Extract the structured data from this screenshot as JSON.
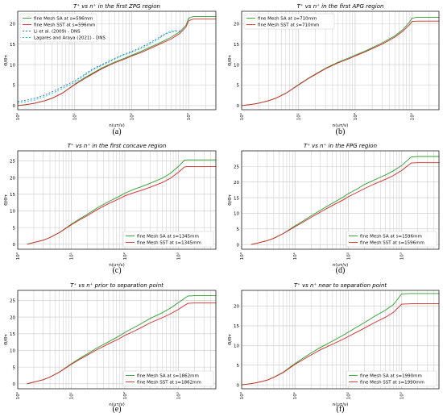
{
  "colors": {
    "sa": "#2ca02c",
    "sst": "#d62728",
    "li": "#1f77b4",
    "lagares": "#17becf",
    "grid": "#c8c8c8",
    "axis": "#000000"
  },
  "chart_data": [
    {
      "id": "a",
      "type": "line",
      "caption": "(a)",
      "title": "T⁺ vs n⁺ in the first ZPG region",
      "xlabel": "n(uτ/ν)",
      "ylabel": "Θ/Θτ",
      "xscale": "log",
      "xlim": [
        1,
        3000
      ],
      "ylim": [
        -1,
        23
      ],
      "xticks": [
        {
          "v": 1,
          "label": "10⁰"
        },
        {
          "v": 10,
          "label": "10¹"
        },
        {
          "v": 100,
          "label": "10²"
        },
        {
          "v": 1000,
          "label": "10³"
        }
      ],
      "yticks": [
        0,
        5,
        10,
        15,
        20
      ],
      "legend_position": "top-left",
      "series": [
        {
          "name": "fine Mesh SA at s=596mm",
          "color": "#2ca02c",
          "dash": "",
          "x": [
            1,
            1.5,
            2,
            3,
            4,
            6,
            10,
            15,
            20,
            30,
            50,
            80,
            100,
            150,
            200,
            300,
            500,
            700,
            900,
            1000,
            1200,
            1500,
            2000,
            3000
          ],
          "y": [
            0,
            0.3,
            0.6,
            1.2,
            1.8,
            3,
            5.2,
            6.8,
            7.8,
            9.2,
            10.6,
            11.7,
            12.3,
            13.3,
            14.1,
            15.2,
            16.7,
            18.0,
            19.6,
            21.3,
            21.7,
            21.7,
            21.7,
            21.7
          ]
        },
        {
          "name": "fine Mesh SST at s=596mm",
          "color": "#d62728",
          "dash": "",
          "x": [
            1,
            1.5,
            2,
            3,
            4,
            6,
            10,
            15,
            20,
            30,
            50,
            80,
            100,
            150,
            200,
            300,
            500,
            700,
            900,
            1000,
            1200,
            1500,
            2000,
            3000
          ],
          "y": [
            0,
            0.3,
            0.6,
            1.2,
            1.8,
            3,
            5.1,
            6.6,
            7.6,
            9.0,
            10.4,
            11.5,
            12.1,
            13.0,
            13.8,
            14.9,
            16.3,
            17.6,
            19.2,
            20.7,
            21.1,
            21.1,
            21.1,
            21.1
          ]
        },
        {
          "name": "Li et al. (2009) - DNS",
          "color": "#1f77b4",
          "dash": "2,2",
          "x": [
            1,
            1.5,
            2,
            3,
            5,
            7,
            10,
            20,
            30,
            50,
            70,
            100,
            150,
            200,
            300,
            400,
            600,
            800
          ],
          "y": [
            1,
            1.4,
            1.8,
            2.6,
            4,
            5,
            6,
            8.8,
            10,
            11.5,
            12.4,
            13.2,
            14.3,
            15.2,
            16.6,
            17.6,
            18.2,
            18.2
          ]
        },
        {
          "name": "Lagares and Araya (2021) - DNS",
          "color": "#17becf",
          "dash": "2,2",
          "x": [
            1,
            1.5,
            2,
            3,
            5,
            7,
            10,
            20,
            30,
            50,
            70,
            100,
            150,
            200,
            300,
            400,
            500,
            600
          ],
          "y": [
            0.6,
            1.0,
            1.4,
            2.2,
            3.6,
            4.6,
            5.6,
            8.6,
            9.8,
            11.3,
            12.3,
            13.0,
            14.0,
            14.9,
            16.3,
            17.6,
            18.2,
            18.3
          ]
        }
      ]
    },
    {
      "id": "b",
      "type": "line",
      "caption": "(b)",
      "title": "T⁺ vs n⁺ in the first APG region",
      "xlabel": "n(uτ/ν)",
      "ylabel": "Θ/Θτ",
      "xscale": "log",
      "xlim": [
        1,
        3000
      ],
      "ylim": [
        -1,
        23
      ],
      "xticks": [
        {
          "v": 1,
          "label": "10⁰"
        },
        {
          "v": 10,
          "label": "10¹"
        },
        {
          "v": 100,
          "label": "10²"
        },
        {
          "v": 1000,
          "label": "10³"
        }
      ],
      "yticks": [
        0,
        5,
        10,
        15,
        20
      ],
      "legend_position": "top-left",
      "series": [
        {
          "name": "fine Mesh SA at s=710mm",
          "color": "#2ca02c",
          "dash": "",
          "x": [
            1,
            1.5,
            2,
            3,
            4,
            6,
            10,
            15,
            20,
            30,
            50,
            80,
            100,
            150,
            200,
            300,
            500,
            700,
            900,
            1000,
            1200,
            1500,
            2000,
            3000
          ],
          "y": [
            0,
            0.3,
            0.6,
            1.2,
            1.8,
            3,
            5.1,
            6.7,
            7.7,
            9.1,
            10.6,
            11.7,
            12.3,
            13.3,
            14.1,
            15.3,
            17.0,
            18.6,
            20.3,
            21.3,
            21.5,
            21.5,
            21.5,
            21.5
          ]
        },
        {
          "name": "fine Mesh SST at s=710mm",
          "color": "#d62728",
          "dash": "",
          "x": [
            1,
            1.5,
            2,
            3,
            4,
            6,
            10,
            15,
            20,
            30,
            50,
            80,
            100,
            150,
            200,
            300,
            500,
            700,
            900,
            1000,
            1200,
            1500,
            2000,
            3000
          ],
          "y": [
            0,
            0.3,
            0.6,
            1.2,
            1.8,
            3,
            5.0,
            6.6,
            7.6,
            9.0,
            10.4,
            11.5,
            12.1,
            13.1,
            13.9,
            15.0,
            16.7,
            18.2,
            19.7,
            20.5,
            20.6,
            20.6,
            20.6,
            20.6
          ]
        }
      ]
    },
    {
      "id": "c",
      "type": "line",
      "caption": "(c)",
      "title": "T⁺ vs n⁺ in the first concave region",
      "xlabel": "n(uτ/ν)",
      "ylabel": "Θ/Θτ",
      "xscale": "log",
      "xlim": [
        1,
        5000
      ],
      "ylim": [
        -1.5,
        28
      ],
      "xticks": [
        {
          "v": 1,
          "label": "10⁰"
        },
        {
          "v": 10,
          "label": "10¹"
        },
        {
          "v": 100,
          "label": "10²"
        },
        {
          "v": 1000,
          "label": "10³"
        }
      ],
      "yticks": [
        0,
        5,
        10,
        15,
        20,
        25
      ],
      "legend_position": "bottom-right",
      "series": [
        {
          "name": "fine Mesh SA at s=1345mm",
          "color": "#2ca02c",
          "dash": "",
          "x": [
            1.5,
            2,
            3,
            4,
            6,
            10,
            15,
            20,
            30,
            50,
            80,
            100,
            150,
            200,
            300,
            500,
            700,
            1000,
            1300,
            1500,
            2000,
            3000,
            5000
          ],
          "y": [
            0,
            0.5,
            1.2,
            2,
            3.5,
            6,
            7.8,
            9,
            10.8,
            12.8,
            14.4,
            15.3,
            16.5,
            17.2,
            18.3,
            19.8,
            21.2,
            23.3,
            25.2,
            25.3,
            25.3,
            25.3,
            25.3
          ]
        },
        {
          "name": "fine Mesh SST at s=1345mm",
          "color": "#d62728",
          "dash": "",
          "x": [
            1.5,
            2,
            3,
            4,
            6,
            10,
            15,
            20,
            30,
            50,
            80,
            100,
            150,
            200,
            300,
            500,
            700,
            1000,
            1300,
            1500,
            2000,
            3000,
            5000
          ],
          "y": [
            0,
            0.5,
            1.2,
            2,
            3.5,
            5.8,
            7.5,
            8.6,
            10.3,
            12.2,
            13.7,
            14.5,
            15.5,
            16.1,
            17.1,
            18.5,
            19.7,
            21.6,
            23.2,
            23.3,
            23.3,
            23.3,
            23.3
          ]
        }
      ]
    },
    {
      "id": "d",
      "type": "line",
      "caption": "(d)",
      "title": "T⁺ vs n⁺ in the FPG region",
      "xlabel": "n(uτ/ν)",
      "ylabel": "Θ/Θτ",
      "xscale": "log",
      "xlim": [
        1,
        5000
      ],
      "ylim": [
        -1.5,
        30
      ],
      "xticks": [
        {
          "v": 1,
          "label": "10⁰"
        },
        {
          "v": 10,
          "label": "10¹"
        },
        {
          "v": 100,
          "label": "10²"
        },
        {
          "v": 1000,
          "label": "10³"
        }
      ],
      "yticks": [
        0,
        5,
        10,
        15,
        20,
        25
      ],
      "legend_position": "bottom-right",
      "series": [
        {
          "name": "fine Mesh SA at s=1596mm",
          "color": "#2ca02c",
          "dash": "",
          "x": [
            1.5,
            2,
            3,
            4,
            6,
            10,
            15,
            20,
            30,
            50,
            80,
            100,
            150,
            200,
            300,
            500,
            700,
            1000,
            1500,
            2000,
            2500,
            3000,
            5000
          ],
          "y": [
            0,
            0.5,
            1.2,
            2,
            3.5,
            6,
            7.8,
            9.2,
            11,
            13.2,
            15.2,
            16.3,
            17.9,
            19.2,
            20.6,
            22.3,
            23.6,
            25.3,
            28.0,
            28.2,
            28.2,
            28.2,
            28.2
          ]
        },
        {
          "name": "fine Mesh SST at s=1596mm",
          "color": "#d62728",
          "dash": "",
          "x": [
            1.5,
            2,
            3,
            4,
            6,
            10,
            15,
            20,
            30,
            50,
            80,
            100,
            150,
            200,
            300,
            500,
            700,
            1000,
            1500,
            2000,
            2500,
            3000,
            5000
          ],
          "y": [
            0,
            0.5,
            1.2,
            2,
            3.5,
            5.7,
            7.4,
            8.7,
            10.4,
            12.5,
            14.3,
            15.3,
            16.8,
            17.9,
            19.3,
            20.9,
            22.1,
            23.7,
            26.1,
            26.2,
            26.2,
            26.2,
            26.2
          ]
        }
      ]
    },
    {
      "id": "e",
      "type": "line",
      "caption": "(e)",
      "title": "T⁺ vs n⁺ prior to separation point",
      "xlabel": "n(uτ/ν)",
      "ylabel": "Θ/Θτ",
      "xscale": "log",
      "xlim": [
        1,
        5000
      ],
      "ylim": [
        -1.5,
        28
      ],
      "xticks": [
        {
          "v": 1,
          "label": "10⁰"
        },
        {
          "v": 10,
          "label": "10¹"
        },
        {
          "v": 100,
          "label": "10²"
        },
        {
          "v": 1000,
          "label": "10³"
        }
      ],
      "yticks": [
        0,
        5,
        10,
        15,
        20,
        25
      ],
      "legend_position": "bottom-right",
      "series": [
        {
          "name": "fine Mesh SA at s=1862mm",
          "color": "#2ca02c",
          "dash": "",
          "x": [
            1.5,
            2,
            3,
            4,
            6,
            10,
            15,
            20,
            30,
            50,
            80,
            100,
            150,
            200,
            300,
            500,
            700,
            1000,
            1500,
            2000,
            2500,
            3000,
            5000
          ],
          "y": [
            0,
            0.5,
            1.2,
            2,
            3.5,
            6,
            7.8,
            9,
            10.7,
            12.6,
            14.4,
            15.4,
            16.9,
            18.0,
            19.6,
            21.3,
            22.6,
            24.3,
            26.3,
            26.4,
            26.4,
            26.4,
            26.4
          ]
        },
        {
          "name": "fine Mesh SST at s=1862mm",
          "color": "#d62728",
          "dash": "",
          "x": [
            1.5,
            2,
            3,
            4,
            6,
            10,
            15,
            20,
            30,
            50,
            80,
            100,
            150,
            200,
            300,
            500,
            700,
            1000,
            1500,
            2000,
            2500,
            3000,
            5000
          ],
          "y": [
            0,
            0.5,
            1.2,
            2,
            3.5,
            5.8,
            7.5,
            8.6,
            10.2,
            12,
            13.6,
            14.5,
            15.8,
            16.8,
            18.3,
            19.8,
            20.9,
            22.3,
            24.1,
            24.2,
            24.2,
            24.2,
            24.2
          ]
        }
      ]
    },
    {
      "id": "f",
      "type": "line",
      "caption": "(f)",
      "title": "T⁺ vs n⁺ near to separation point",
      "xlabel": "n(uτ/ν)",
      "ylabel": "Θ/Θτ",
      "xscale": "log",
      "xlim": [
        1,
        5000
      ],
      "ylim": [
        -1,
        24
      ],
      "xticks": [
        {
          "v": 1,
          "label": "10⁰"
        },
        {
          "v": 10,
          "label": "10¹"
        },
        {
          "v": 100,
          "label": "10²"
        },
        {
          "v": 1000,
          "label": "10³"
        }
      ],
      "yticks": [
        0,
        5,
        10,
        15,
        20
      ],
      "legend_position": "bottom-right",
      "series": [
        {
          "name": "fine Mesh SA at s=1990mm",
          "color": "#2ca02c",
          "dash": "",
          "x": [
            1,
            1.5,
            2,
            3,
            4,
            6,
            10,
            15,
            20,
            30,
            50,
            80,
            100,
            150,
            200,
            300,
            500,
            700,
            1000,
            1500,
            2000,
            3000,
            5000
          ],
          "y": [
            0,
            0.3,
            0.6,
            1.2,
            1.9,
            3.2,
            5.4,
            7.0,
            8.1,
            9.5,
            11.1,
            12.6,
            13.4,
            14.8,
            15.8,
            17.3,
            19.0,
            20.4,
            23.1,
            23.2,
            23.2,
            23.2,
            23.2
          ]
        },
        {
          "name": "fine Mesh SST at s=1990mm",
          "color": "#d62728",
          "dash": "",
          "x": [
            1,
            1.5,
            2,
            3,
            4,
            6,
            10,
            15,
            20,
            30,
            50,
            80,
            100,
            150,
            200,
            300,
            500,
            700,
            1000,
            1500,
            2000,
            3000,
            5000
          ],
          "y": [
            0,
            0.3,
            0.6,
            1.2,
            1.9,
            3.1,
            5.2,
            6.6,
            7.6,
            8.9,
            10.3,
            11.6,
            12.3,
            13.5,
            14.4,
            15.7,
            17.2,
            18.4,
            20.5,
            20.6,
            20.6,
            20.6,
            20.6
          ]
        }
      ]
    }
  ]
}
